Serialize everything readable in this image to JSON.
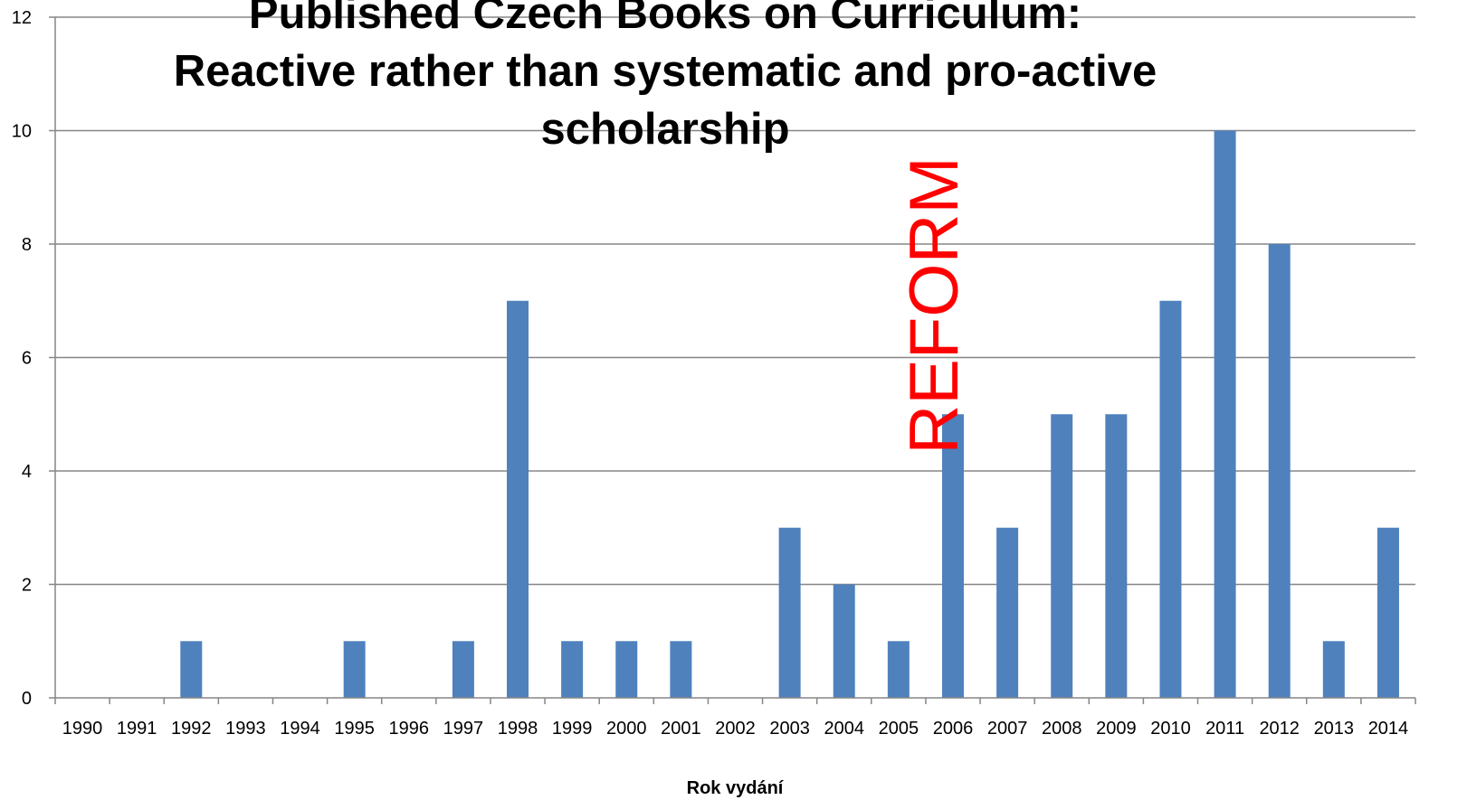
{
  "chart_data": {
    "type": "bar",
    "title_lines": [
      "Published Czech Books on Curriculum:",
      "Reactive rather than systematic and pro-active",
      "scholarship"
    ],
    "xlabel": "Rok vydání",
    "ylabel": "",
    "ylim": [
      0,
      12
    ],
    "yticks": [
      0,
      2,
      4,
      6,
      8,
      10,
      12
    ],
    "categories": [
      "1990",
      "1991",
      "1992",
      "1993",
      "1994",
      "1995",
      "1996",
      "1997",
      "1998",
      "1999",
      "2000",
      "2001",
      "2002",
      "2003",
      "2004",
      "2005",
      "2006",
      "2007",
      "2008",
      "2009",
      "2010",
      "2011",
      "2012",
      "2013",
      "2014"
    ],
    "values": [
      0,
      0,
      1,
      0,
      0,
      1,
      0,
      1,
      7,
      1,
      1,
      1,
      0,
      3,
      2,
      1,
      5,
      3,
      5,
      5,
      7,
      10,
      8,
      1,
      3
    ],
    "grid": true,
    "legend": "none",
    "annotation": {
      "text": "REFORM",
      "near_category": "2006",
      "rotation": "vertical",
      "color": "#ff0000"
    },
    "bar_color": "#4f81bd"
  }
}
